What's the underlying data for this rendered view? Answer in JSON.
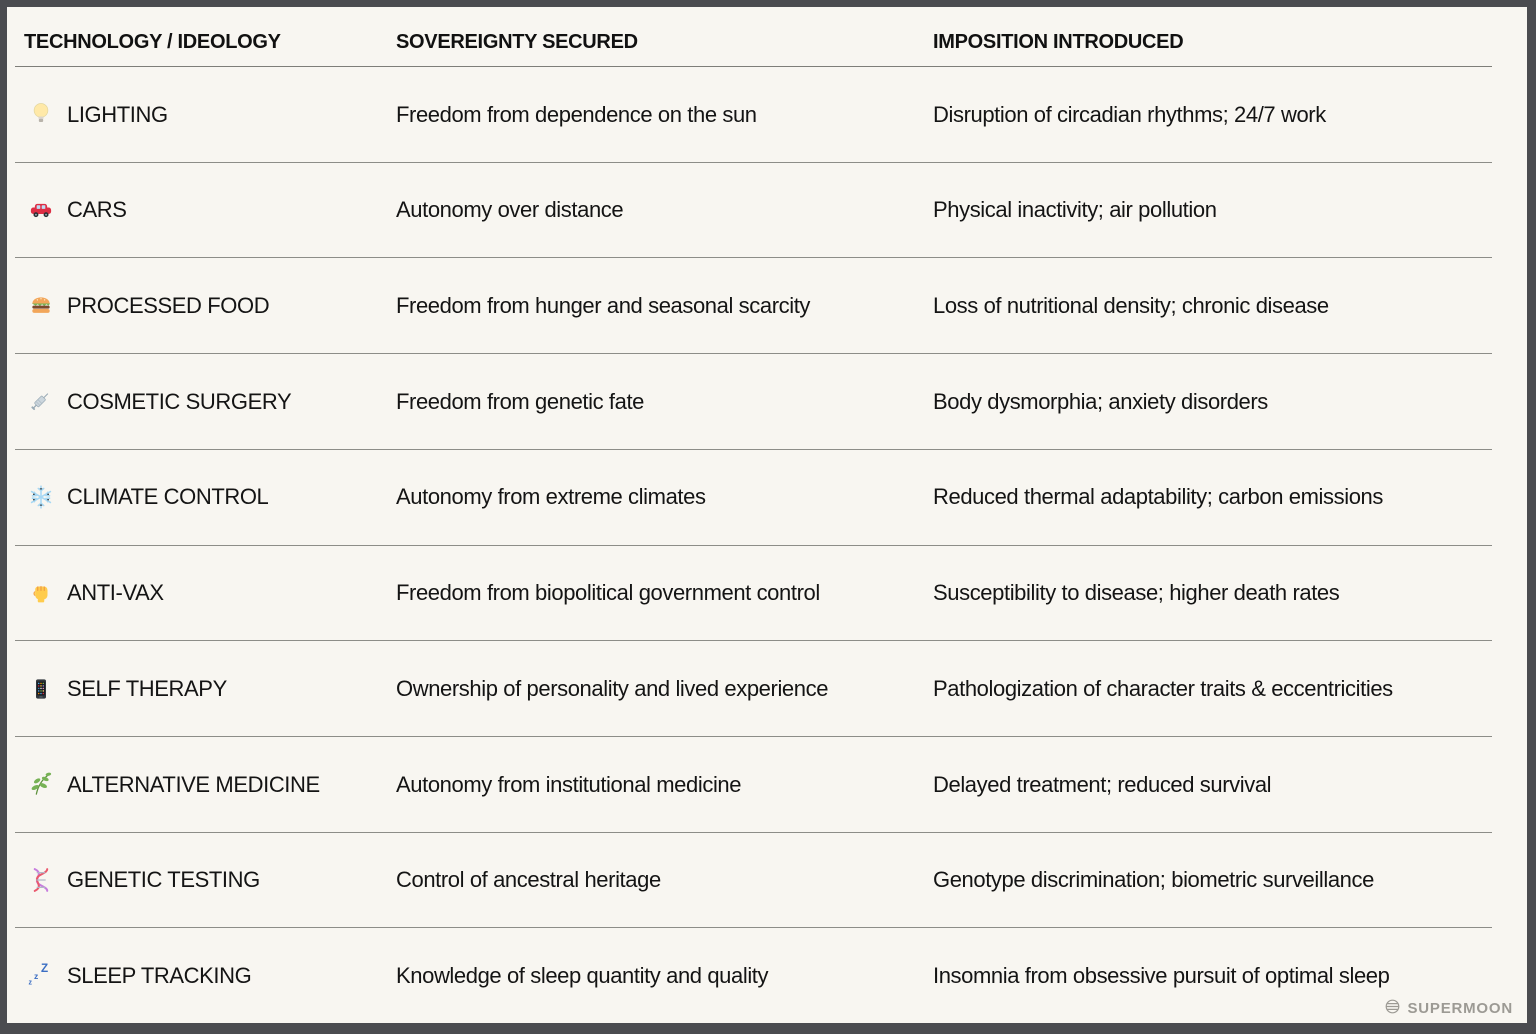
{
  "chart_data": {
    "type": "table",
    "title": "",
    "columns": [
      "TECHNOLOGY / IDEOLOGY",
      "SOVEREIGNTY SECURED",
      "IMPOSITION INTRODUCED"
    ],
    "rows": [
      {
        "icon": "lightbulb-icon",
        "emoji": "💡",
        "label": "LIGHTING",
        "sovereignty": "Freedom from dependence on the sun",
        "imposition": "Disruption of circadian rhythms; 24/7 work"
      },
      {
        "icon": "car-icon",
        "emoji": "🚗",
        "label": "CARS",
        "sovereignty": "Autonomy over distance",
        "imposition": "Physical inactivity; air pollution"
      },
      {
        "icon": "hamburger-icon",
        "emoji": "🍔",
        "label": "PROCESSED FOOD",
        "sovereignty": "Freedom from hunger and seasonal scarcity",
        "imposition": "Loss of nutritional density; chronic disease"
      },
      {
        "icon": "syringe-icon",
        "emoji": "💉",
        "label": "COSMETIC SURGERY",
        "sovereignty": "Freedom from genetic fate",
        "imposition": "Body dysmorphia; anxiety disorders"
      },
      {
        "icon": "snowflake-icon",
        "emoji": "❄️",
        "label": "CLIMATE CONTROL",
        "sovereignty": "Autonomy from extreme climates",
        "imposition": "Reduced thermal adaptability; carbon emissions"
      },
      {
        "icon": "fist-icon",
        "emoji": "✊",
        "label": "ANTI-VAX",
        "sovereignty": "Freedom from biopolitical government control",
        "imposition": "Susceptibility to disease; higher death rates"
      },
      {
        "icon": "phone-icon",
        "emoji": "📱",
        "label": "SELF THERAPY",
        "sovereignty": "Ownership of personality and lived experience",
        "imposition": "Pathologization of character traits & eccentricities"
      },
      {
        "icon": "herb-icon",
        "emoji": "🌿",
        "label": "ALTERNATIVE MEDICINE",
        "sovereignty": "Autonomy from institutional medicine",
        "imposition": "Delayed treatment; reduced survival"
      },
      {
        "icon": "dna-icon",
        "emoji": "🧬",
        "label": "GENETIC TESTING",
        "sovereignty": "Control of ancestral heritage",
        "imposition": "Genotype discrimination; biometric surveillance"
      },
      {
        "icon": "zzz-icon",
        "emoji": "💤",
        "label": "SLEEP TRACKING",
        "sovereignty": "Knowledge of sleep quantity and quality",
        "imposition": "Insomnia from obsessive pursuit of optimal sleep"
      }
    ]
  },
  "footer": {
    "brand": "SUPERMOON",
    "logo_icon": "supermoon-moon-icon"
  },
  "colors": {
    "background": "#f8f6f1",
    "frame": "#4b4c50",
    "divider": "#8d8d88",
    "header_divider": "#7e7e79",
    "text": "#141414",
    "brand_gray": "#9c9a94"
  }
}
